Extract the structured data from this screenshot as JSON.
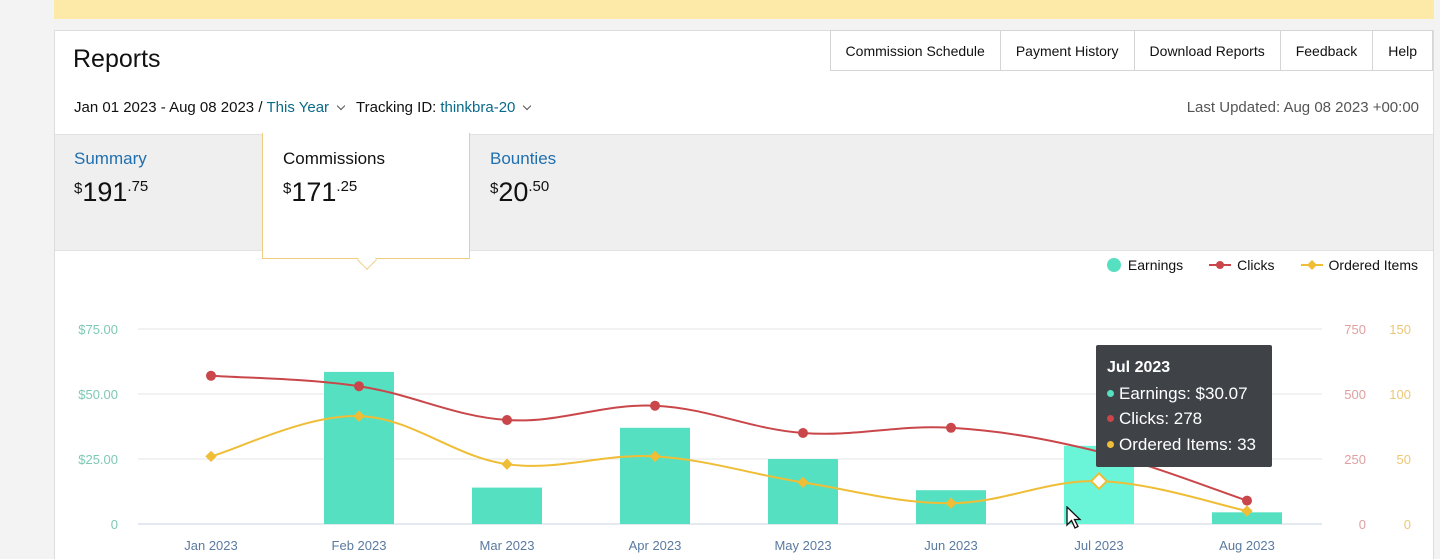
{
  "header": {
    "title": "Reports",
    "tabs": [
      "Commission Schedule",
      "Payment History",
      "Download Reports",
      "Feedback",
      "Help"
    ],
    "date_range": "Jan 01 2023 - Aug 08 2023 /",
    "period_link": "This Year",
    "tracking_label": "Tracking ID:",
    "tracking_id": "thinkbra-20",
    "last_updated": "Last Updated: Aug 08 2023 +00:00"
  },
  "summary": {
    "items": [
      {
        "label": "Summary",
        "currency": "$",
        "whole": "191",
        "cents": ".75"
      },
      {
        "label": "Commissions",
        "currency": "$",
        "whole": "171",
        "cents": ".25"
      },
      {
        "label": "Bounties",
        "currency": "$",
        "whole": "20",
        "cents": ".50"
      }
    ]
  },
  "legend": {
    "earnings": "Earnings",
    "clicks": "Clicks",
    "ordered": "Ordered Items"
  },
  "tooltip": {
    "title": "Jul 2023",
    "earnings": "Earnings: $30.07",
    "clicks": "Clicks: 278",
    "ordered": "Ordered Items: 33"
  },
  "chart_data": {
    "type": "bar",
    "categories": [
      "Jan 2023",
      "Feb 2023",
      "Mar 2023",
      "Apr 2023",
      "May 2023",
      "Jun 2023",
      "Jul 2023",
      "Aug 2023"
    ],
    "series": [
      {
        "name": "Earnings",
        "type": "bar",
        "axis": "left",
        "values": [
          0,
          58.5,
          14,
          37,
          25,
          13,
          30.07,
          4.5
        ]
      },
      {
        "name": "Clicks",
        "type": "line",
        "axis": "right1",
        "values": [
          570,
          530,
          400,
          455,
          350,
          370,
          278,
          90
        ]
      },
      {
        "name": "Ordered Items",
        "type": "line",
        "axis": "right2",
        "values": [
          52,
          83,
          46,
          52,
          32,
          16,
          33,
          10
        ]
      }
    ],
    "y_left": {
      "ticks": [
        "0",
        "$25.00",
        "$50.00",
        "$75.00"
      ],
      "range": [
        0,
        75
      ]
    },
    "y_right1": {
      "ticks": [
        "0",
        "250",
        "500",
        "750"
      ],
      "range": [
        0,
        750
      ]
    },
    "y_right2": {
      "ticks": [
        "0",
        "50",
        "100",
        "150"
      ],
      "range": [
        0,
        150
      ]
    },
    "highlight_index": 6,
    "grid": true,
    "legend_position": "top-right",
    "colors": {
      "earnings": "#56e0c2",
      "earnings_highlight": "#6af5d8",
      "clicks": "#c9474a",
      "ordered": "#efbd36"
    }
  }
}
